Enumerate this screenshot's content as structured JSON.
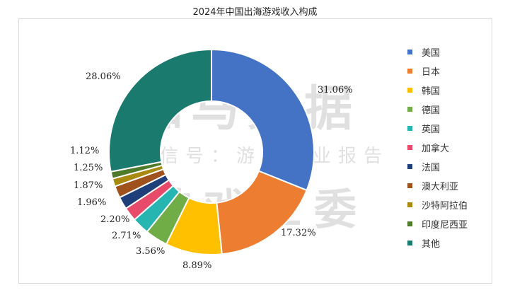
{
  "title": "2024年中国出海游戏收入构成",
  "watermark": {
    "line1": "伽马数据",
    "line2": "微信号：游戏产业报告",
    "line3": "游戏工委"
  },
  "chart_data": {
    "type": "pie",
    "donut": true,
    "legend_position": "right",
    "slices": [
      {
        "name": "美国",
        "value": 31.06,
        "label": "31.06%",
        "color": "#4472c4"
      },
      {
        "name": "日本",
        "value": 17.32,
        "label": "17.32%",
        "color": "#ed7d31"
      },
      {
        "name": "韩国",
        "value": 8.89,
        "label": "8.89%",
        "color": "#ffc000"
      },
      {
        "name": "德国",
        "value": 3.56,
        "label": "3.56%",
        "color": "#70ad47"
      },
      {
        "name": "英国",
        "value": 2.71,
        "label": "2.71%",
        "color": "#26b5b0"
      },
      {
        "name": "加拿大",
        "value": 2.2,
        "label": "2.20%",
        "color": "#e84b6a"
      },
      {
        "name": "法国",
        "value": 1.96,
        "label": "1.96%",
        "color": "#1f3f7a"
      },
      {
        "name": "澳大利亚",
        "value": 1.87,
        "label": "1.87%",
        "color": "#a0521d"
      },
      {
        "name": "沙特阿拉伯",
        "value": 1.25,
        "label": "1.25%",
        "color": "#a88a10"
      },
      {
        "name": "印度尼西亚",
        "value": 1.12,
        "label": "1.12%",
        "color": "#4e7a2a"
      },
      {
        "name": "其他",
        "value": 28.06,
        "label": "28.06%",
        "color": "#1b7a6e"
      }
    ]
  }
}
